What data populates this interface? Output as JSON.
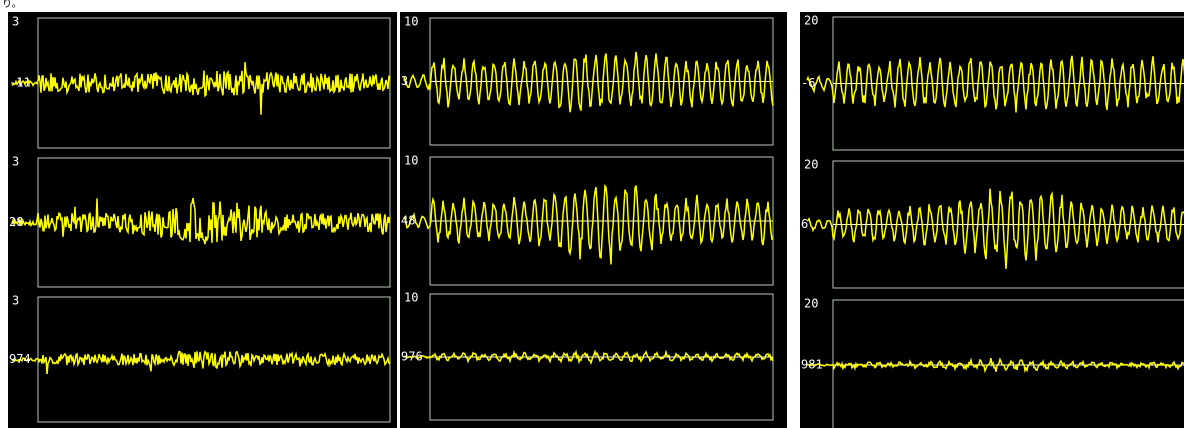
{
  "caption": "り。",
  "columns": [
    {
      "panels": [
        {
          "scale": "3",
          "offset": "-11"
        },
        {
          "scale": "3",
          "offset": "28"
        },
        {
          "scale": "3",
          "offset": "974"
        }
      ]
    },
    {
      "panels": [
        {
          "scale": "10",
          "offset": "3"
        },
        {
          "scale": "10",
          "offset": "48"
        },
        {
          "scale": "10",
          "offset": "976"
        }
      ]
    },
    {
      "panels": [
        {
          "scale": "20",
          "offset": "-6"
        },
        {
          "scale": "20",
          "offset": "6"
        },
        {
          "scale": "20",
          "offset": "981"
        }
      ]
    }
  ]
}
